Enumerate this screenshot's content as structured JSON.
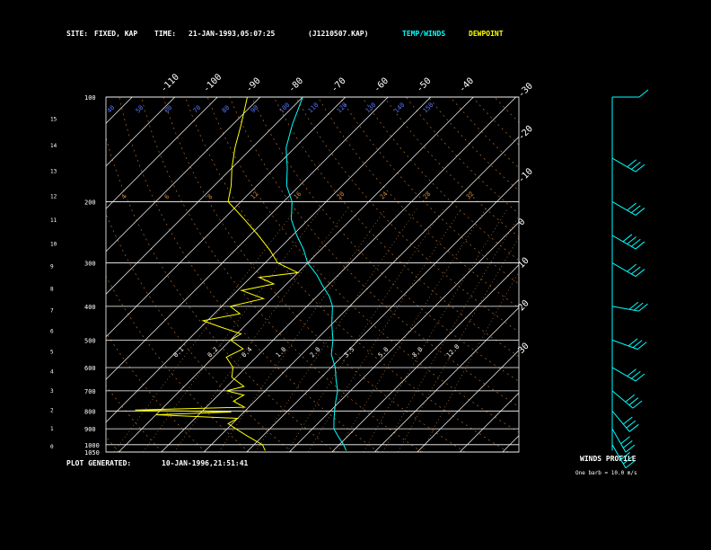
{
  "header": {
    "site_label": "SITE:",
    "site_value": "FIXED, KAP",
    "time_label": "TIME:",
    "time_value": "21-JAN-1993,05:07:25",
    "file": "(J1210507.KAP)",
    "legend_temp": "TEMP/WINDS",
    "legend_dew": "DEWPOINT"
  },
  "footer": {
    "generated_label": "PLOT GENERATED:",
    "generated_value": "10-JAN-1996,21:51:41"
  },
  "winds_panel": {
    "title": "WINDS PROFILE",
    "note": "One barb = 10.0 m/s"
  },
  "colors": {
    "temperature": "#00ffff",
    "dewpoint": "#ffff00",
    "isotherm": "#ffffff",
    "isobar": "#ffffff",
    "mixing_ratio": "#d08a40",
    "dry_adiabat": "#c87a30",
    "moist_adiabat": "#d08a40",
    "altitude_label": "#5577ff",
    "wind": "#00ffff"
  },
  "chart_data": {
    "type": "line",
    "chart_kind": "skew-T log-P",
    "y_axis": {
      "pressure_labels": [
        "100",
        "200",
        "300",
        "400",
        "500",
        "600",
        "700",
        "800",
        "900",
        "1000",
        "1050"
      ],
      "pressure_values": [
        100,
        200,
        300,
        400,
        500,
        600,
        700,
        800,
        900,
        1000,
        1050
      ],
      "ylim": [
        1050,
        100
      ],
      "altitude_km_labels": [
        "0",
        "1",
        "2",
        "3",
        "4",
        "5",
        "6",
        "7",
        "8",
        "9",
        "10",
        "11",
        "12",
        "13",
        "14",
        "15"
      ]
    },
    "isotherm_labels_top": [
      "-110",
      "-100",
      "-90",
      "-80",
      "-70",
      "-60",
      "-50",
      "-40"
    ],
    "isotherm_labels_right": [
      "-30",
      "-20",
      "-10",
      "0",
      "10",
      "20",
      "30"
    ],
    "isotherm_values_top": [
      -110,
      -100,
      -90,
      -80,
      -70,
      -60,
      -50,
      -40
    ],
    "isotherm_values_right": [
      -30,
      -20,
      -10,
      0,
      10,
      20,
      30
    ],
    "isotherm_step": 10,
    "dry_adiabat_labels": [
      "40",
      "50",
      "60",
      "70",
      "80",
      "90",
      "100",
      "110",
      "120",
      "130",
      "140",
      "150"
    ],
    "mixing_ratio_labels_upper": [
      "4",
      "6",
      "8",
      "12",
      "16",
      "20",
      "24",
      "28",
      "32"
    ],
    "mixing_ratio_labels_lower": [
      "0.1",
      "0.2",
      "0.4",
      "1.0",
      "2.0",
      "3.5",
      "5.0",
      "8.0",
      "12.0"
    ],
    "series": [
      {
        "name": "TEMP/WINDS",
        "points": [
          {
            "p": 100,
            "t": -80
          },
          {
            "p": 120,
            "t": -76
          },
          {
            "p": 140,
            "t": -72
          },
          {
            "p": 160,
            "t": -67
          },
          {
            "p": 180,
            "t": -63
          },
          {
            "p": 200,
            "t": -58
          },
          {
            "p": 225,
            "t": -54
          },
          {
            "p": 250,
            "t": -49
          },
          {
            "p": 275,
            "t": -44
          },
          {
            "p": 300,
            "t": -40
          },
          {
            "p": 325,
            "t": -35
          },
          {
            "p": 350,
            "t": -31
          },
          {
            "p": 375,
            "t": -27
          },
          {
            "p": 400,
            "t": -24
          },
          {
            "p": 450,
            "t": -20
          },
          {
            "p": 500,
            "t": -16
          },
          {
            "p": 550,
            "t": -13
          },
          {
            "p": 600,
            "t": -9
          },
          {
            "p": 650,
            "t": -6
          },
          {
            "p": 700,
            "t": -3
          },
          {
            "p": 750,
            "t": -1
          },
          {
            "p": 800,
            "t": 1
          },
          {
            "p": 850,
            "t": 3
          },
          {
            "p": 900,
            "t": 5
          },
          {
            "p": 950,
            "t": 8
          },
          {
            "p": 1000,
            "t": 11
          },
          {
            "p": 1040,
            "t": 13
          }
        ]
      },
      {
        "name": "DEWPOINT",
        "points": [
          {
            "p": 100,
            "t": -93
          },
          {
            "p": 120,
            "t": -88
          },
          {
            "p": 140,
            "t": -84
          },
          {
            "p": 160,
            "t": -80
          },
          {
            "p": 180,
            "t": -76
          },
          {
            "p": 200,
            "t": -73
          },
          {
            "p": 225,
            "t": -65
          },
          {
            "p": 250,
            "t": -58
          },
          {
            "p": 275,
            "t": -52
          },
          {
            "p": 300,
            "t": -47
          },
          {
            "p": 320,
            "t": -40
          },
          {
            "p": 330,
            "t": -48
          },
          {
            "p": 345,
            "t": -43
          },
          {
            "p": 360,
            "t": -49
          },
          {
            "p": 380,
            "t": -42
          },
          {
            "p": 400,
            "t": -48
          },
          {
            "p": 420,
            "t": -44
          },
          {
            "p": 440,
            "t": -51
          },
          {
            "p": 460,
            "t": -45
          },
          {
            "p": 480,
            "t": -39
          },
          {
            "p": 500,
            "t": -40
          },
          {
            "p": 530,
            "t": -35
          },
          {
            "p": 560,
            "t": -37
          },
          {
            "p": 600,
            "t": -33
          },
          {
            "p": 640,
            "t": -31
          },
          {
            "p": 680,
            "t": -26
          },
          {
            "p": 700,
            "t": -29
          },
          {
            "p": 720,
            "t": -24
          },
          {
            "p": 750,
            "t": -25
          },
          {
            "p": 780,
            "t": -21
          },
          {
            "p": 795,
            "t": -46
          },
          {
            "p": 805,
            "t": -23
          },
          {
            "p": 820,
            "t": -40
          },
          {
            "p": 840,
            "t": -20
          },
          {
            "p": 870,
            "t": -21
          },
          {
            "p": 900,
            "t": -18
          },
          {
            "p": 940,
            "t": -14
          },
          {
            "p": 980,
            "t": -10
          },
          {
            "p": 1000,
            "t": -8
          },
          {
            "p": 1040,
            "t": -6
          }
        ]
      }
    ],
    "winds": [
      {
        "p": 100,
        "dir": 270,
        "speed": 10
      },
      {
        "p": 150,
        "dir": 300,
        "speed": 30
      },
      {
        "p": 200,
        "dir": 300,
        "speed": 30
      },
      {
        "p": 250,
        "dir": 300,
        "speed": 40
      },
      {
        "p": 300,
        "dir": 300,
        "speed": 30
      },
      {
        "p": 400,
        "dir": 280,
        "speed": 30
      },
      {
        "p": 500,
        "dir": 290,
        "speed": 30
      },
      {
        "p": 600,
        "dir": 300,
        "speed": 30
      },
      {
        "p": 700,
        "dir": 310,
        "speed": 30
      },
      {
        "p": 800,
        "dir": 320,
        "speed": 30
      },
      {
        "p": 900,
        "dir": 330,
        "speed": 30
      },
      {
        "p": 1000,
        "dir": 330,
        "speed": 30
      }
    ]
  }
}
